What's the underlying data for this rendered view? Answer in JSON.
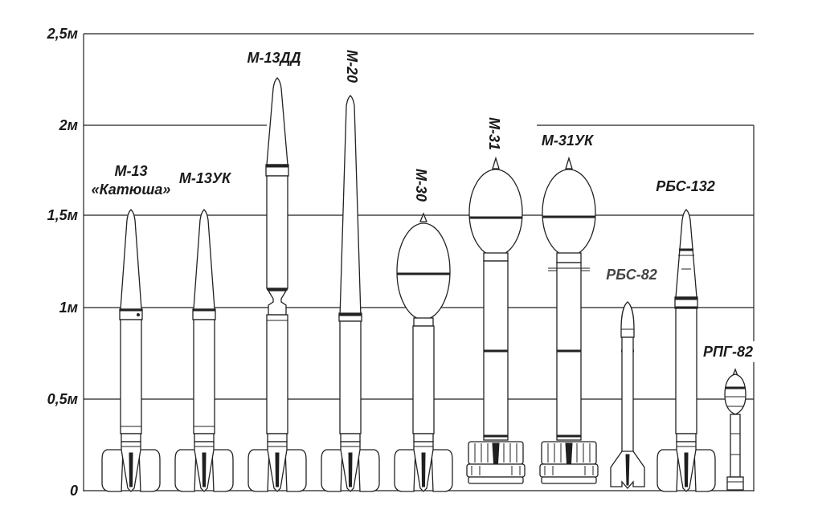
{
  "scale": {
    "ticks": [
      "2,5м",
      "2м",
      "1,5м",
      "1м",
      "0,5м",
      "0"
    ]
  },
  "rockets": [
    {
      "id": "m13",
      "name": "М-13",
      "subtitle": "«Катюша»"
    },
    {
      "id": "m13uk",
      "name": "М-13УК"
    },
    {
      "id": "m13dd",
      "name": "М-13ДД"
    },
    {
      "id": "m20",
      "name": "М-20"
    },
    {
      "id": "m30",
      "name": "М-30"
    },
    {
      "id": "m31",
      "name": "М-31"
    },
    {
      "id": "m31uk",
      "name": "М-31УК"
    },
    {
      "id": "rbs82",
      "name": "РБС-82"
    },
    {
      "id": "rbs132",
      "name": "РБС-132"
    },
    {
      "id": "rpg82",
      "name": "РПГ-82"
    }
  ],
  "colors": {
    "line": "#222222",
    "background": "#ffffff",
    "label_light": "#444444"
  }
}
